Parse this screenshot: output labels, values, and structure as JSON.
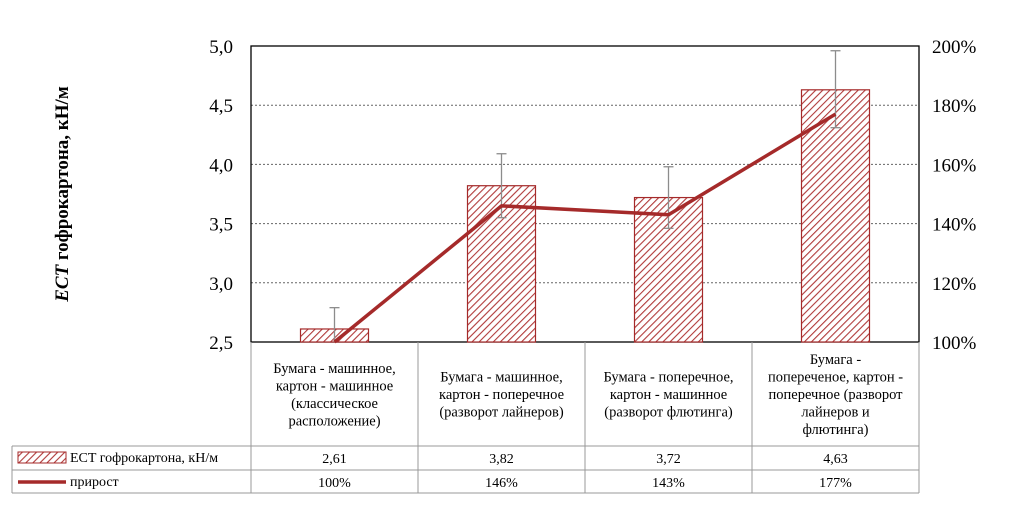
{
  "chart_data": {
    "type": "bar",
    "categories": [
      [
        "Бумага - машинное,",
        "картон - машинное",
        "(классическое",
        "расположение)"
      ],
      [
        "Бумага - машинное,",
        "картон - поперечное",
        "(разворот лайнеров)"
      ],
      [
        "Бумага - поперечное,",
        "картон - машинное",
        "(разворот флютинга)"
      ],
      [
        "Бумага -",
        "попереченое, картон -",
        "поперечное (разворот",
        "лайнеров и",
        "флютинга)"
      ]
    ],
    "ylabel_prefix": "ECT",
    "ylabel_rest": " гофрокартона, кН/м",
    "ylim": [
      2.5,
      5.0
    ],
    "yticks": [
      "2,5",
      "3,0",
      "3,5",
      "4,0",
      "4,5",
      "5,0"
    ],
    "y2lim": [
      100,
      200
    ],
    "y2ticks": [
      "100%",
      "120%",
      "140%",
      "160%",
      "180%",
      "200%"
    ],
    "series": [
      {
        "name": "ECT гофрокартона, кН/м",
        "type": "bar",
        "values": [
          2.61,
          3.82,
          3.72,
          4.63
        ],
        "labels": [
          "2,61",
          "3,82",
          "3,72",
          "4,63"
        ],
        "error_low": [
          2.5,
          3.55,
          3.46,
          4.31
        ],
        "error_high": [
          2.79,
          4.09,
          3.98,
          4.96
        ],
        "color": "#a52a2a"
      },
      {
        "name": "прирост",
        "type": "line",
        "axis": "secondary",
        "values": [
          100,
          146,
          143,
          177
        ],
        "labels": [
          "100%",
          "146%",
          "143%",
          "177%"
        ],
        "color": "#a52a2a"
      }
    ]
  }
}
